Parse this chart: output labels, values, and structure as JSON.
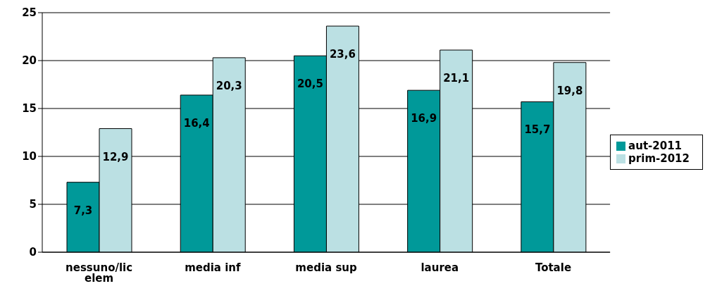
{
  "chart_data": {
    "type": "bar",
    "categories": [
      "nessuno/lic elem",
      "media inf",
      "media sup",
      "laurea",
      "Totale"
    ],
    "series": [
      {
        "name": "aut-2011",
        "color": "#009999",
        "values": [
          7.3,
          16.4,
          20.5,
          16.9,
          15.7
        ],
        "value_labels": [
          "7,3",
          "16,4",
          "20,5",
          "16,9",
          "15,7"
        ]
      },
      {
        "name": "prim-2012",
        "color": "#bbe0e3",
        "values": [
          12.9,
          20.3,
          23.6,
          21.1,
          19.8
        ],
        "value_labels": [
          "12,9",
          "20,3",
          "23,6",
          "21,1",
          "19,8"
        ]
      }
    ],
    "ylim": [
      0,
      25
    ],
    "yticks": [
      0,
      5,
      10,
      15,
      20,
      25
    ],
    "grid": "y",
    "legend": "right"
  }
}
